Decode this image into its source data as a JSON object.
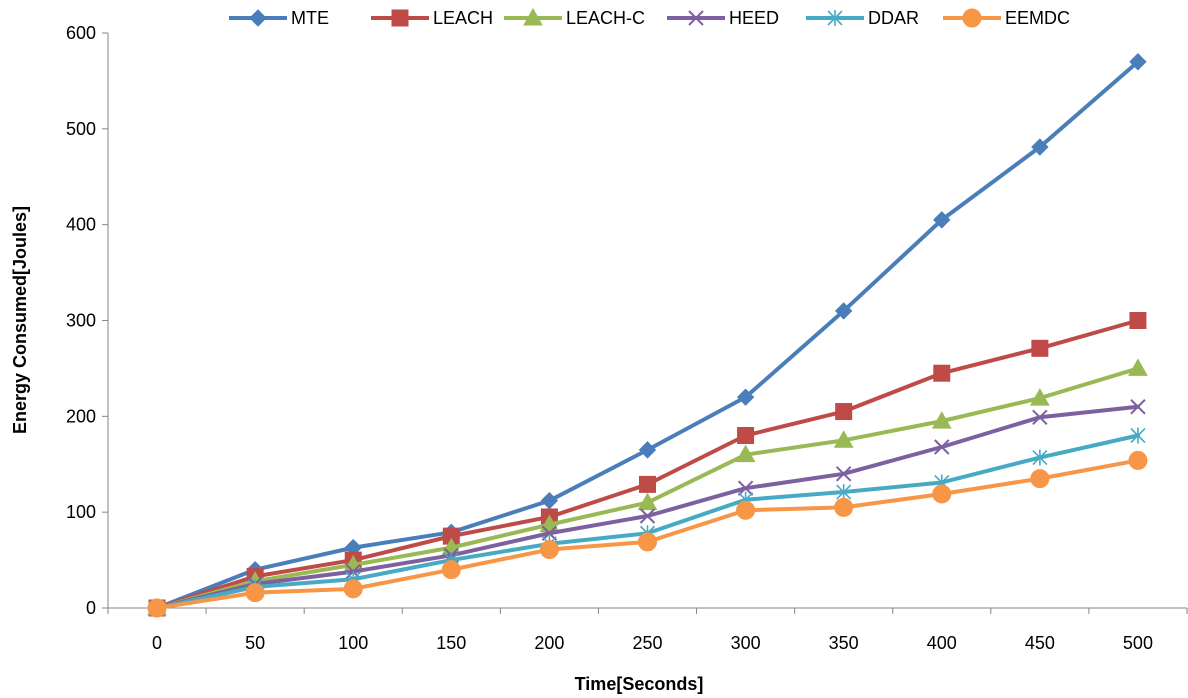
{
  "chart_data": {
    "type": "line",
    "title": "",
    "xlabel": "Time[Seconds]",
    "ylabel": "Energy Consumed[Joules]",
    "categories": [
      "0",
      "50",
      "100",
      "150",
      "200",
      "250",
      "300",
      "350",
      "400",
      "450",
      "500"
    ],
    "ylim": [
      0,
      600
    ],
    "yticks": [
      "0",
      "100",
      "200",
      "300",
      "400",
      "500",
      "600"
    ],
    "grid": false,
    "legend_position": "top",
    "series": [
      {
        "name": "MTE",
        "color": "#4a7ebb",
        "marker": "diamond",
        "values": [
          0,
          40,
          63,
          79,
          112,
          165,
          220,
          310,
          405,
          481,
          570
        ]
      },
      {
        "name": "LEACH",
        "color": "#be4b48",
        "marker": "square",
        "values": [
          0,
          33,
          50,
          75,
          95,
          129,
          180,
          205,
          245,
          271,
          300
        ]
      },
      {
        "name": "LEACH-C",
        "color": "#98b954",
        "marker": "triangle",
        "values": [
          0,
          28,
          45,
          63,
          87,
          110,
          160,
          175,
          195,
          219,
          250
        ]
      },
      {
        "name": "HEED",
        "color": "#7d60a0",
        "marker": "x",
        "values": [
          0,
          25,
          38,
          55,
          78,
          96,
          125,
          140,
          168,
          199,
          210
        ]
      },
      {
        "name": "DDAR",
        "color": "#46aac5",
        "marker": "star",
        "values": [
          0,
          22,
          30,
          50,
          67,
          78,
          113,
          121,
          131,
          157,
          180
        ]
      },
      {
        "name": "EEMDC",
        "color": "#f79646",
        "marker": "circle",
        "values": [
          0,
          16,
          20,
          40,
          61,
          69,
          102,
          105,
          119,
          135,
          154
        ]
      }
    ]
  }
}
